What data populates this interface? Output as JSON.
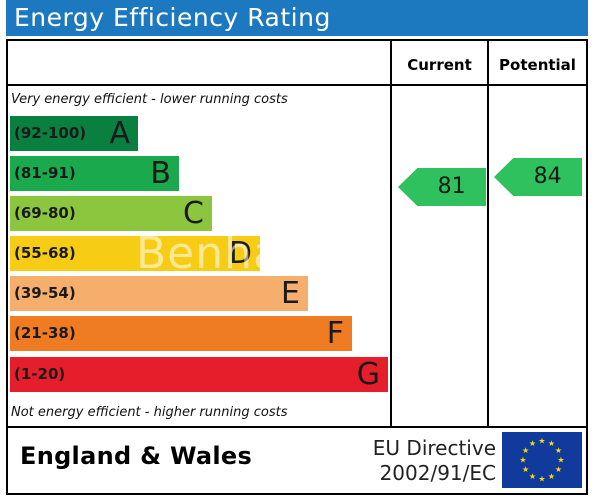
{
  "header": {
    "title": "Energy Efficiency Rating"
  },
  "columns": {
    "current": "Current",
    "potential": "Potential"
  },
  "captions": {
    "top": "Very energy efficient - lower running costs",
    "bottom": "Not energy efficient - higher running costs"
  },
  "bands": [
    {
      "range": "(92-100)",
      "letter": "A",
      "color": "#0a8040"
    },
    {
      "range": "(81-91)",
      "letter": "B",
      "color": "#1ba94e"
    },
    {
      "range": "(69-80)",
      "letter": "C",
      "color": "#8cc63f"
    },
    {
      "range": "(55-68)",
      "letter": "D",
      "color": "#f6cc14"
    },
    {
      "range": "(39-54)",
      "letter": "E",
      "color": "#f5ae6c"
    },
    {
      "range": "(21-38)",
      "letter": "F",
      "color": "#ef7c23"
    },
    {
      "range": "(1-20)",
      "letter": "G",
      "color": "#e61e2b"
    }
  ],
  "ratings": {
    "current": {
      "value": 81,
      "label": "81",
      "color": "#2fc15e"
    },
    "potential": {
      "value": 84,
      "label": "84",
      "color": "#2fc15e"
    }
  },
  "footer": {
    "region": "England & Wales",
    "directive_line1": "EU Directive",
    "directive_line2": "2002/91/EC"
  },
  "watermark": "Benham"
}
